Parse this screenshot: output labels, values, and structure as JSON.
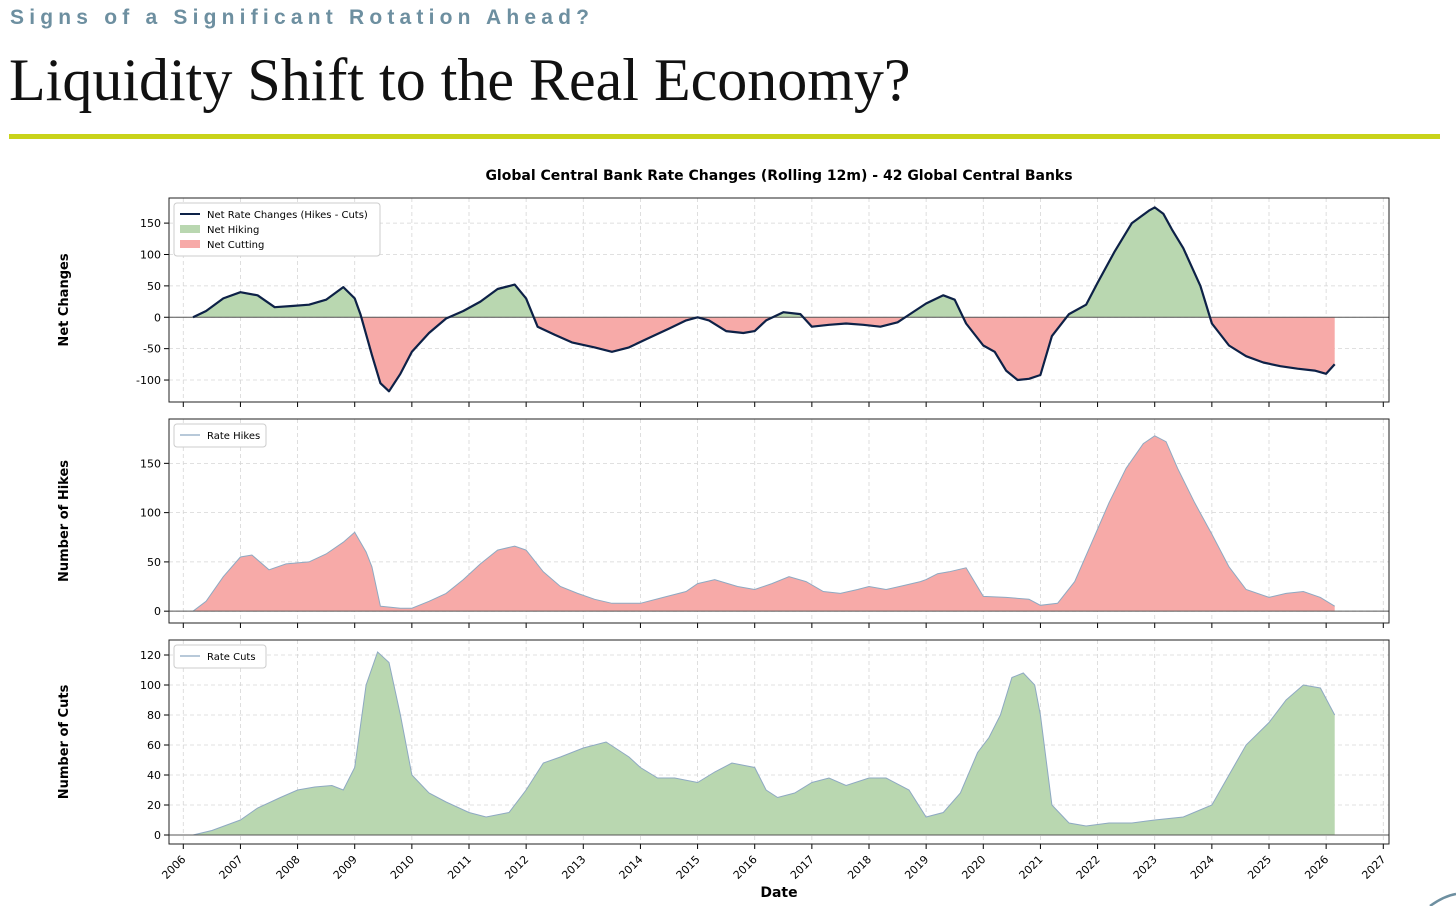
{
  "header": {
    "kicker": "Signs of a Significant Rotation Ahead?",
    "title": "Liquidity Shift to the Real Economy?"
  },
  "colors": {
    "accent_rule": "#c9d31a",
    "kicker": "#6d8fa0",
    "net_line": "#0d2147",
    "hiking_fill": "#b9d7b0",
    "cutting_fill": "#f7aaa8",
    "hikes_line": "#8ea9c2",
    "cuts_line": "#8ea9c2",
    "zero_line": "#555555"
  },
  "chart_data": {
    "type": "line",
    "title": "Global Central Bank Rate Changes (Rolling 12m) - 42 Global Central Banks",
    "xlabel": "Date",
    "xlim": [
      2005.75,
      2027.1
    ],
    "xticks": [
      "2006",
      "2007",
      "2008",
      "2009",
      "2010",
      "2011",
      "2012",
      "2013",
      "2014",
      "2015",
      "2016",
      "2017",
      "2018",
      "2019",
      "2020",
      "2021",
      "2022",
      "2023",
      "2024",
      "2025",
      "2026",
      "2027"
    ],
    "panels": [
      {
        "id": "net",
        "ylabel": "Net Changes",
        "ylim": [
          -135,
          190
        ],
        "yticks": [
          -100,
          -50,
          0,
          50,
          100,
          150
        ],
        "legend": [
          "Net Rate Changes (Hikes - Cuts)",
          "Net Hiking",
          "Net Cutting"
        ],
        "legend_position": "top-left",
        "series": {
          "name": "Net Rate Changes (Hikes - Cuts)",
          "x": [
            2006.17,
            2006.4,
            2006.7,
            2007.0,
            2007.3,
            2007.6,
            2007.9,
            2008.2,
            2008.5,
            2008.8,
            2009.0,
            2009.1,
            2009.3,
            2009.45,
            2009.6,
            2009.8,
            2010.0,
            2010.3,
            2010.6,
            2010.9,
            2011.2,
            2011.5,
            2011.8,
            2012.0,
            2012.2,
            2012.5,
            2012.8,
            2013.2,
            2013.5,
            2013.8,
            2014.1,
            2014.5,
            2014.8,
            2015.0,
            2015.2,
            2015.5,
            2015.8,
            2016.0,
            2016.2,
            2016.5,
            2016.8,
            2017.0,
            2017.3,
            2017.6,
            2017.9,
            2018.2,
            2018.5,
            2018.8,
            2019.0,
            2019.3,
            2019.5,
            2019.7,
            2020.0,
            2020.2,
            2020.4,
            2020.6,
            2020.8,
            2021.0,
            2021.2,
            2021.5,
            2021.8,
            2022.0,
            2022.3,
            2022.6,
            2022.9,
            2023.0,
            2023.15,
            2023.3,
            2023.5,
            2023.8,
            2024.0,
            2024.3,
            2024.6,
            2024.9,
            2025.2,
            2025.5,
            2025.8,
            2026.0,
            2026.15
          ],
          "y": [
            0,
            10,
            30,
            40,
            35,
            16,
            18,
            20,
            28,
            48,
            30,
            5,
            -60,
            -105,
            -118,
            -90,
            -55,
            -25,
            -2,
            10,
            25,
            45,
            52,
            30,
            -15,
            -28,
            -40,
            -48,
            -55,
            -48,
            -35,
            -18,
            -5,
            0,
            -5,
            -22,
            -25,
            -22,
            -5,
            8,
            5,
            -15,
            -12,
            -10,
            -12,
            -15,
            -8,
            10,
            22,
            35,
            28,
            -10,
            -45,
            -55,
            -85,
            -100,
            -98,
            -92,
            -30,
            5,
            20,
            55,
            105,
            150,
            170,
            175,
            165,
            140,
            110,
            50,
            -10,
            -45,
            -62,
            -72,
            -78,
            -82,
            -85,
            -90,
            -75
          ]
        }
      },
      {
        "id": "hikes",
        "ylabel": "Number of Hikes",
        "ylim": [
          -12,
          195
        ],
        "yticks": [
          0,
          50,
          100,
          150
        ],
        "legend": [
          "Rate Hikes"
        ],
        "legend_position": "top-left",
        "series": {
          "name": "Rate Hikes",
          "x": [
            2006.17,
            2006.4,
            2006.7,
            2007.0,
            2007.2,
            2007.5,
            2007.8,
            2008.2,
            2008.5,
            2008.8,
            2009.0,
            2009.2,
            2009.3,
            2009.45,
            2009.8,
            2010.0,
            2010.3,
            2010.6,
            2010.9,
            2011.2,
            2011.5,
            2011.8,
            2012.0,
            2012.3,
            2012.6,
            2012.9,
            2013.2,
            2013.5,
            2013.8,
            2014.0,
            2014.4,
            2014.8,
            2015.0,
            2015.3,
            2015.7,
            2016.0,
            2016.3,
            2016.6,
            2016.9,
            2017.2,
            2017.5,
            2017.8,
            2018.0,
            2018.3,
            2018.6,
            2018.9,
            2019.0,
            2019.2,
            2019.4,
            2019.7,
            2020.0,
            2020.4,
            2020.8,
            2021.0,
            2021.3,
            2021.6,
            2021.9,
            2022.2,
            2022.5,
            2022.8,
            2023.0,
            2023.2,
            2023.4,
            2023.7,
            2024.0,
            2024.3,
            2024.6,
            2025.0,
            2025.3,
            2025.6,
            2025.9,
            2026.15
          ],
          "y": [
            0,
            10,
            35,
            55,
            57,
            42,
            48,
            50,
            58,
            70,
            80,
            60,
            45,
            5,
            3,
            3,
            10,
            18,
            32,
            48,
            62,
            66,
            62,
            40,
            25,
            18,
            12,
            8,
            8,
            8,
            14,
            20,
            28,
            32,
            25,
            22,
            28,
            35,
            30,
            20,
            18,
            22,
            25,
            22,
            26,
            30,
            32,
            38,
            40,
            44,
            15,
            14,
            12,
            6,
            8,
            30,
            70,
            110,
            145,
            170,
            178,
            172,
            145,
            110,
            78,
            45,
            22,
            14,
            18,
            20,
            14,
            5
          ]
        }
      },
      {
        "id": "cuts",
        "ylabel": "Number of Cuts",
        "ylim": [
          -6,
          130
        ],
        "yticks": [
          0,
          20,
          40,
          60,
          80,
          100,
          120
        ],
        "legend": [
          "Rate Cuts"
        ],
        "legend_position": "top-left",
        "series": {
          "name": "Rate Cuts",
          "x": [
            2006.17,
            2006.5,
            2007.0,
            2007.3,
            2007.7,
            2008.0,
            2008.3,
            2008.6,
            2008.8,
            2009.0,
            2009.2,
            2009.4,
            2009.6,
            2009.8,
            2010.0,
            2010.3,
            2010.6,
            2011.0,
            2011.3,
            2011.7,
            2012.0,
            2012.3,
            2012.6,
            2013.0,
            2013.4,
            2013.8,
            2014.0,
            2014.3,
            2014.6,
            2015.0,
            2015.3,
            2015.6,
            2016.0,
            2016.2,
            2016.4,
            2016.7,
            2017.0,
            2017.3,
            2017.6,
            2018.0,
            2018.3,
            2018.7,
            2019.0,
            2019.3,
            2019.6,
            2019.9,
            2020.1,
            2020.3,
            2020.5,
            2020.7,
            2020.9,
            2021.0,
            2021.2,
            2021.5,
            2021.8,
            2022.2,
            2022.6,
            2023.0,
            2023.5,
            2024.0,
            2024.3,
            2024.6,
            2025.0,
            2025.3,
            2025.6,
            2025.9,
            2026.15
          ],
          "y": [
            0,
            3,
            10,
            18,
            25,
            30,
            32,
            33,
            30,
            45,
            100,
            122,
            115,
            80,
            40,
            28,
            22,
            15,
            12,
            15,
            30,
            48,
            52,
            58,
            62,
            52,
            45,
            38,
            38,
            35,
            42,
            48,
            45,
            30,
            25,
            28,
            35,
            38,
            33,
            38,
            38,
            30,
            12,
            15,
            28,
            55,
            65,
            80,
            105,
            108,
            100,
            80,
            20,
            8,
            6,
            8,
            8,
            10,
            12,
            20,
            40,
            60,
            75,
            90,
            100,
            98,
            80
          ]
        }
      }
    ]
  }
}
